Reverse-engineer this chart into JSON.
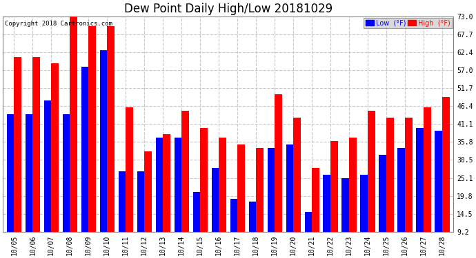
{
  "title": "Dew Point Daily High/Low 20181029",
  "copyright": "Copyright 2018 Cartronics.com",
  "dates": [
    "10/05",
    "10/06",
    "10/07",
    "10/08",
    "10/09",
    "10/10",
    "10/11",
    "10/12",
    "10/13",
    "10/14",
    "10/15",
    "10/16",
    "10/17",
    "10/18",
    "10/19",
    "10/20",
    "10/21",
    "10/22",
    "10/23",
    "10/24",
    "10/25",
    "10/26",
    "10/27",
    "10/28"
  ],
  "low_values": [
    44,
    44,
    48,
    44,
    58,
    63,
    27,
    27,
    37,
    37,
    21,
    28,
    19,
    18,
    34,
    35,
    15,
    26,
    25,
    26,
    32,
    34,
    40,
    39
  ],
  "high_values": [
    61,
    61,
    59,
    74,
    70,
    70,
    46,
    33,
    38,
    45,
    40,
    37,
    35,
    34,
    50,
    43,
    28,
    36,
    37,
    45,
    43,
    43,
    46,
    49
  ],
  "low_color": "#0000ff",
  "high_color": "#ff0000",
  "bg_color": "#ffffff",
  "plot_bg_color": "#ffffff",
  "grid_color": "#c8c8c8",
  "ylim_min": 9.2,
  "ylim_max": 73.0,
  "yticks": [
    9.2,
    14.5,
    19.8,
    25.1,
    30.5,
    35.8,
    41.1,
    46.4,
    51.7,
    57.0,
    62.4,
    67.7,
    73.0
  ],
  "bar_width": 0.4,
  "legend_low_label": "Low  (°F)",
  "legend_high_label": "High  (°F)",
  "title_fontsize": 12,
  "tick_fontsize": 7,
  "copyright_fontsize": 6.5
}
